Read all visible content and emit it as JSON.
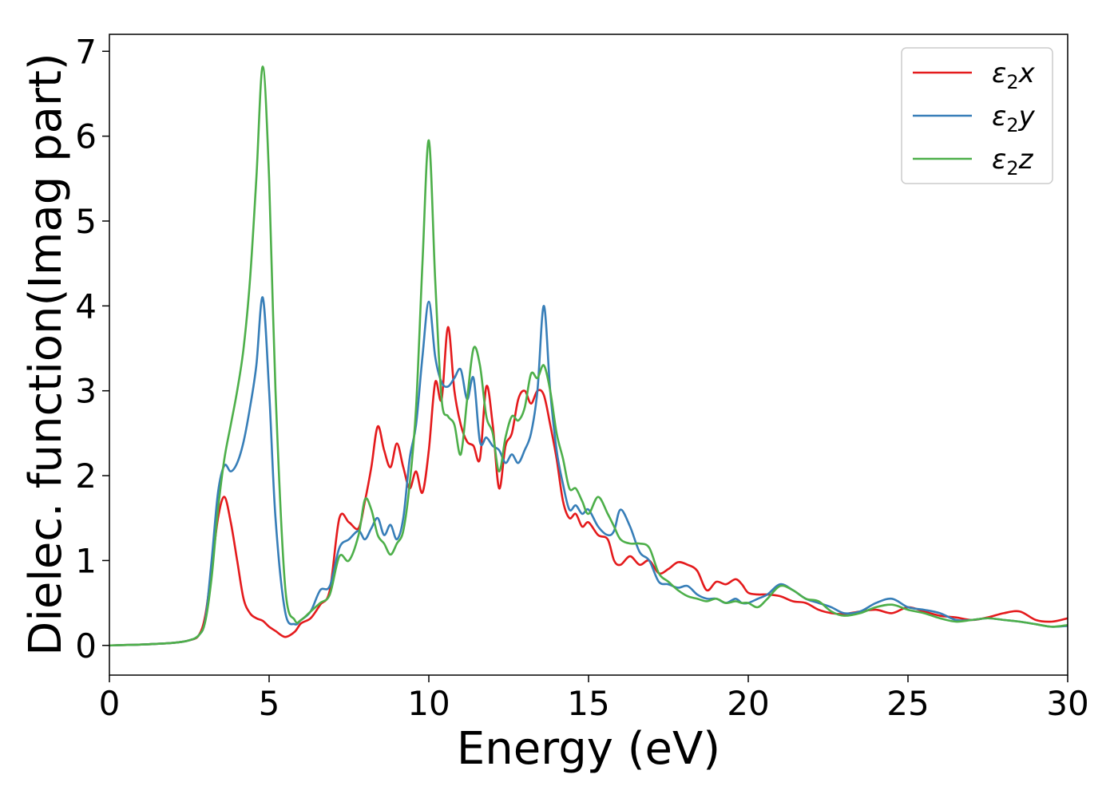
{
  "chart_data": {
    "type": "line",
    "title": "",
    "xlabel": "Energy (eV)",
    "ylabel": "Dielec. function(Imag part)",
    "xlim": [
      0,
      30
    ],
    "ylim": [
      -0.35,
      7.2
    ],
    "xticks": [
      0,
      5,
      10,
      15,
      20,
      25,
      30
    ],
    "yticks": [
      0,
      1,
      2,
      3,
      4,
      5,
      6,
      7
    ],
    "grid": false,
    "legend_position": "top-right",
    "series": [
      {
        "name": "ε₂x",
        "legend_base": "ε",
        "legend_sub": "2",
        "legend_suffix": "x",
        "color": "#e41a1c",
        "x": [
          0,
          1,
          2,
          2.5,
          2.8,
          3.0,
          3.2,
          3.4,
          3.6,
          3.8,
          4.0,
          4.2,
          4.4,
          4.6,
          4.8,
          5.0,
          5.2,
          5.5,
          5.8,
          6.0,
          6.3,
          6.6,
          6.9,
          7.2,
          7.5,
          7.8,
          8.0,
          8.2,
          8.4,
          8.6,
          8.8,
          9.0,
          9.2,
          9.4,
          9.6,
          9.8,
          10.0,
          10.2,
          10.4,
          10.6,
          10.8,
          11.0,
          11.2,
          11.4,
          11.6,
          11.8,
          12.0,
          12.2,
          12.4,
          12.6,
          12.8,
          13.0,
          13.2,
          13.4,
          13.6,
          13.8,
          14.0,
          14.2,
          14.4,
          14.6,
          14.8,
          15.0,
          15.3,
          15.6,
          15.8,
          16.0,
          16.3,
          16.6,
          16.9,
          17.2,
          17.5,
          17.8,
          18.1,
          18.4,
          18.7,
          19.0,
          19.3,
          19.6,
          19.8,
          20.0,
          20.3,
          20.6,
          21.0,
          21.4,
          21.8,
          22.2,
          22.6,
          23.0,
          23.5,
          24.0,
          24.5,
          25.0,
          25.5,
          26.0,
          26.5,
          27.0,
          27.5,
          28.0,
          28.5,
          29.0,
          29.5,
          30.0
        ],
        "y": [
          0.0,
          0.01,
          0.03,
          0.06,
          0.12,
          0.35,
          0.9,
          1.5,
          1.75,
          1.45,
          1.0,
          0.55,
          0.38,
          0.32,
          0.29,
          0.22,
          0.17,
          0.1,
          0.16,
          0.26,
          0.32,
          0.48,
          0.65,
          1.5,
          1.45,
          1.38,
          1.7,
          2.1,
          2.58,
          2.3,
          2.1,
          2.38,
          2.1,
          1.85,
          2.05,
          1.8,
          2.3,
          3.1,
          2.9,
          3.75,
          3.0,
          2.6,
          2.4,
          2.35,
          2.2,
          3.05,
          2.6,
          1.85,
          2.35,
          2.5,
          2.9,
          3.0,
          2.85,
          3.0,
          2.95,
          2.6,
          2.2,
          1.7,
          1.5,
          1.55,
          1.4,
          1.45,
          1.3,
          1.25,
          1.0,
          0.95,
          1.05,
          0.95,
          1.0,
          0.85,
          0.9,
          0.98,
          0.95,
          0.88,
          0.65,
          0.75,
          0.72,
          0.78,
          0.72,
          0.62,
          0.6,
          0.6,
          0.58,
          0.52,
          0.5,
          0.42,
          0.38,
          0.37,
          0.4,
          0.42,
          0.38,
          0.45,
          0.4,
          0.35,
          0.33,
          0.3,
          0.33,
          0.38,
          0.4,
          0.3,
          0.28,
          0.32
        ]
      },
      {
        "name": "ε₂y",
        "legend_base": "ε",
        "legend_sub": "2",
        "legend_suffix": "y",
        "color": "#377eb8",
        "x": [
          0,
          1,
          2,
          2.5,
          2.8,
          3.0,
          3.2,
          3.4,
          3.6,
          3.8,
          4.0,
          4.2,
          4.4,
          4.6,
          4.8,
          5.0,
          5.2,
          5.5,
          5.8,
          6.0,
          6.3,
          6.6,
          6.9,
          7.2,
          7.5,
          7.8,
          8.0,
          8.2,
          8.4,
          8.6,
          8.8,
          9.0,
          9.2,
          9.4,
          9.6,
          9.8,
          10.0,
          10.2,
          10.4,
          10.6,
          10.8,
          11.0,
          11.2,
          11.4,
          11.6,
          11.8,
          12.0,
          12.2,
          12.4,
          12.6,
          12.8,
          13.0,
          13.2,
          13.4,
          13.6,
          13.8,
          14.0,
          14.2,
          14.4,
          14.6,
          14.8,
          15.0,
          15.3,
          15.6,
          15.8,
          16.0,
          16.3,
          16.6,
          16.9,
          17.2,
          17.5,
          17.8,
          18.1,
          18.4,
          18.7,
          19.0,
          19.3,
          19.6,
          19.8,
          20.0,
          20.3,
          20.6,
          21.0,
          21.4,
          21.8,
          22.2,
          22.6,
          23.0,
          23.5,
          24.0,
          24.5,
          25.0,
          25.5,
          26.0,
          26.5,
          27.0,
          27.5,
          28.0,
          28.5,
          29.0,
          29.5,
          30.0
        ],
        "y": [
          0.0,
          0.01,
          0.03,
          0.06,
          0.12,
          0.3,
          1.0,
          1.8,
          2.12,
          2.05,
          2.15,
          2.4,
          2.8,
          3.3,
          4.1,
          3.0,
          1.5,
          0.4,
          0.25,
          0.3,
          0.4,
          0.65,
          0.7,
          1.15,
          1.25,
          1.35,
          1.25,
          1.38,
          1.5,
          1.3,
          1.42,
          1.25,
          1.5,
          2.2,
          2.6,
          3.4,
          4.05,
          3.4,
          3.1,
          3.05,
          3.15,
          3.25,
          2.9,
          3.15,
          2.4,
          2.45,
          2.35,
          2.3,
          2.15,
          2.25,
          2.15,
          2.3,
          2.5,
          3.0,
          4.0,
          3.0,
          2.3,
          1.9,
          1.6,
          1.65,
          1.55,
          1.6,
          1.4,
          1.3,
          1.35,
          1.6,
          1.4,
          1.1,
          1.0,
          0.75,
          0.72,
          0.68,
          0.7,
          0.6,
          0.55,
          0.55,
          0.5,
          0.55,
          0.5,
          0.5,
          0.55,
          0.6,
          0.72,
          0.65,
          0.55,
          0.5,
          0.45,
          0.38,
          0.4,
          0.5,
          0.55,
          0.45,
          0.42,
          0.38,
          0.3,
          0.3,
          0.32,
          0.3,
          0.28,
          0.25,
          0.22,
          0.23
        ]
      },
      {
        "name": "ε₂z",
        "legend_base": "ε",
        "legend_sub": "2",
        "legend_suffix": "z",
        "color": "#4daf4a",
        "x": [
          0,
          1,
          2,
          2.5,
          2.8,
          3.0,
          3.2,
          3.4,
          3.6,
          3.8,
          4.0,
          4.2,
          4.4,
          4.6,
          4.8,
          5.0,
          5.2,
          5.5,
          5.8,
          6.0,
          6.3,
          6.6,
          6.9,
          7.2,
          7.5,
          7.8,
          8.0,
          8.2,
          8.4,
          8.6,
          8.8,
          9.0,
          9.2,
          9.4,
          9.6,
          9.8,
          10.0,
          10.2,
          10.4,
          10.6,
          10.8,
          11.0,
          11.2,
          11.4,
          11.6,
          11.8,
          12.0,
          12.2,
          12.4,
          12.6,
          12.8,
          13.0,
          13.2,
          13.4,
          13.6,
          13.8,
          14.0,
          14.2,
          14.4,
          14.6,
          14.8,
          15.0,
          15.3,
          15.6,
          15.8,
          16.0,
          16.3,
          16.6,
          16.9,
          17.2,
          17.5,
          17.8,
          18.1,
          18.4,
          18.7,
          19.0,
          19.3,
          19.6,
          19.8,
          20.0,
          20.3,
          20.6,
          21.0,
          21.4,
          21.8,
          22.2,
          22.6,
          23.0,
          23.5,
          24.0,
          24.5,
          25.0,
          25.5,
          26.0,
          26.5,
          27.0,
          27.5,
          28.0,
          28.5,
          29.0,
          29.5,
          30.0
        ],
        "y": [
          0.0,
          0.01,
          0.03,
          0.06,
          0.12,
          0.28,
          0.8,
          1.6,
          2.2,
          2.6,
          3.0,
          3.5,
          4.3,
          5.5,
          6.82,
          5.5,
          3.0,
          0.7,
          0.3,
          0.3,
          0.4,
          0.5,
          0.6,
          1.05,
          1.0,
          1.3,
          1.72,
          1.6,
          1.3,
          1.2,
          1.07,
          1.2,
          1.35,
          1.9,
          2.8,
          4.5,
          5.95,
          4.3,
          2.9,
          2.7,
          2.6,
          2.25,
          2.9,
          3.5,
          3.3,
          2.7,
          2.5,
          2.05,
          2.45,
          2.7,
          2.65,
          2.8,
          3.2,
          3.15,
          3.3,
          3.0,
          2.5,
          2.2,
          1.85,
          1.85,
          1.7,
          1.55,
          1.75,
          1.55,
          1.4,
          1.25,
          1.2,
          1.2,
          1.15,
          0.85,
          0.75,
          0.65,
          0.58,
          0.55,
          0.52,
          0.55,
          0.5,
          0.52,
          0.5,
          0.5,
          0.45,
          0.55,
          0.7,
          0.65,
          0.55,
          0.52,
          0.4,
          0.35,
          0.38,
          0.45,
          0.48,
          0.42,
          0.38,
          0.32,
          0.28,
          0.3,
          0.32,
          0.3,
          0.28,
          0.25,
          0.22,
          0.24
        ]
      }
    ]
  }
}
